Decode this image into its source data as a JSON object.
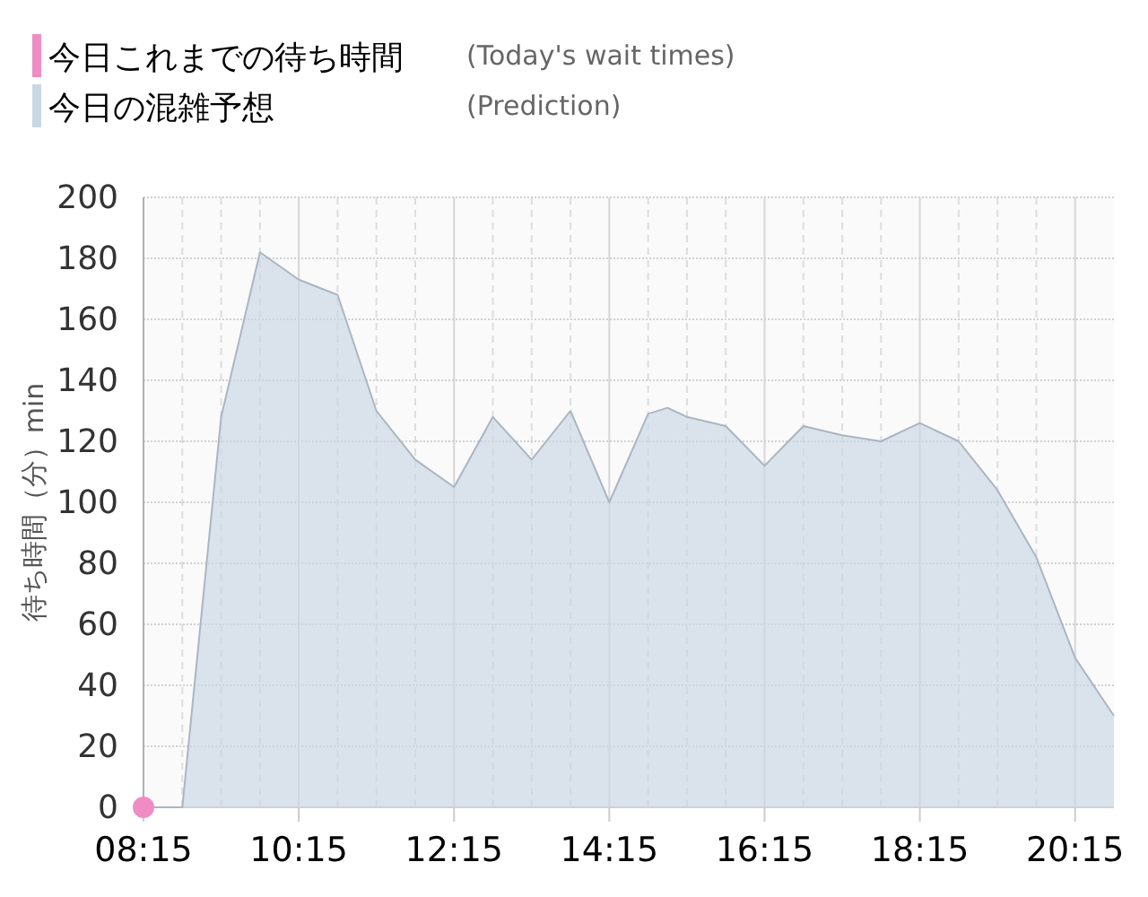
{
  "chart_data": {
    "type": "area",
    "ylabel": "待ち時間（分）min",
    "annotations": [
      "(Today's wait times)",
      "(Prediction)"
    ],
    "xlim": [
      8.25,
      20.75
    ],
    "xticks": [
      {
        "value": 8.25,
        "label": "08:15"
      },
      {
        "value": 10.25,
        "label": "10:15"
      },
      {
        "value": 12.25,
        "label": "12:15"
      },
      {
        "value": 14.25,
        "label": "14:15"
      },
      {
        "value": 16.25,
        "label": "16:15"
      },
      {
        "value": 18.25,
        "label": "18:15"
      },
      {
        "value": 20.25,
        "label": "20:15"
      }
    ],
    "ylim": [
      0,
      200
    ],
    "yticks": [
      0,
      20,
      40,
      60,
      80,
      100,
      120,
      140,
      160,
      180,
      200
    ],
    "grid": true,
    "legend": "top left",
    "series": [
      {
        "name": "今日これまでの待ち時間",
        "type": "scatter",
        "marker": "circle",
        "color": "#f08cc4",
        "x": [
          8.25
        ],
        "values": [
          0
        ]
      },
      {
        "name": "今日の混雑予想",
        "color": "#c9d7e4",
        "x": [
          8.25,
          8.75,
          9.25,
          9.75,
          10.25,
          10.75,
          11.25,
          11.75,
          12.25,
          12.75,
          13.25,
          13.75,
          14.25,
          14.75,
          15.0,
          15.25,
          15.75,
          16.25,
          16.75,
          17.25,
          17.75,
          18.25,
          18.75,
          19.25,
          19.75,
          20.25,
          20.75
        ],
        "values": [
          0,
          0,
          128,
          182,
          173,
          168,
          130,
          114,
          105,
          128,
          114,
          130,
          100,
          129,
          131,
          128,
          125,
          112,
          125,
          122,
          120,
          126,
          120,
          104,
          82,
          49,
          30
        ]
      }
    ]
  }
}
